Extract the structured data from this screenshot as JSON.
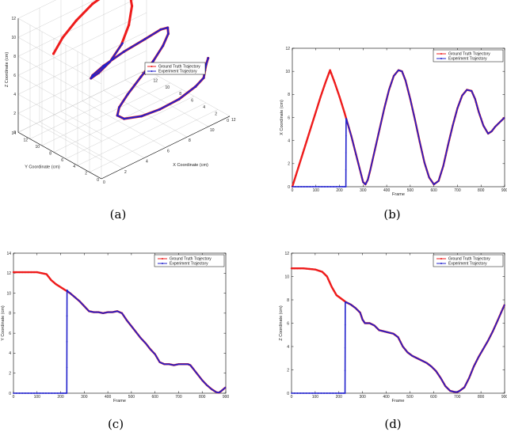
{
  "colors": {
    "ground_truth": "#ee1c1c",
    "experiment": "#2121cc",
    "axis": "#000000",
    "grid": "#bbbbbb"
  },
  "chart_data": [
    {
      "id": "a",
      "type": "line3d",
      "caption": "(a)",
      "xlabel": "X Coordinate (cm)",
      "ylabel": "Y Coordinate (cm)",
      "zlabel": "Z Coordinate (cm)",
      "xlim": [
        0,
        12
      ],
      "ylim": [
        0,
        14
      ],
      "zlim": [
        0,
        12
      ],
      "xticks": [
        "0",
        "2",
        "4",
        "6",
        "8",
        "10",
        "12"
      ],
      "yticks": [
        "0",
        "2",
        "4",
        "6",
        "8",
        "10",
        "12",
        "14"
      ],
      "zticks": [
        "0",
        "2",
        "4",
        "6",
        "8",
        "10",
        "12"
      ],
      "grid": true,
      "legend": {
        "position": "top-right",
        "entries": [
          "Ground Truth Trajectory",
          "Experiment Trajectory"
        ]
      },
      "series": [
        {
          "name": "Ground Truth Trajectory",
          "points": [
            [
              0.3,
              8.6,
              10
            ],
            [
              1.6,
              9.4,
              10.7
            ],
            [
              3.2,
              10,
              11.4
            ],
            [
              5,
              10.5,
              12
            ],
            [
              6.6,
              10.6,
              12.3
            ],
            [
              7.8,
              10.5,
              12.2
            ],
            [
              8.3,
              10.2,
              11.6
            ],
            [
              8.3,
              9.8,
              10.2
            ],
            [
              7.9,
              9.6,
              8.5
            ],
            [
              7.2,
              9.6,
              6.8
            ],
            [
              6.3,
              9.9,
              5.4
            ],
            [
              5.4,
              10.2,
              4.6
            ],
            [
              4.8,
              10.4,
              4.3
            ],
            [
              4.9,
              10.3,
              4.6
            ],
            [
              5.7,
              9.9,
              5.3
            ],
            [
              7.2,
              9.2,
              6.2
            ],
            [
              8.8,
              8.5,
              6.9
            ],
            [
              10.1,
              8.2,
              7.3
            ],
            [
              10.7,
              8.1,
              7.2
            ],
            [
              10.7,
              8,
              6.6
            ],
            [
              10.2,
              8,
              5.6
            ],
            [
              9.3,
              8,
              4.5
            ],
            [
              8.2,
              8.1,
              3.4
            ],
            [
              6.9,
              8,
              2.3
            ],
            [
              6,
              7.8,
              1.5
            ],
            [
              5.6,
              7.4,
              1
            ],
            [
              5.9,
              6.8,
              0.7
            ],
            [
              6.9,
              5.7,
              0.8
            ],
            [
              8,
              4.6,
              1.3
            ],
            [
              9.2,
              3.5,
              2.1
            ],
            [
              10.3,
              2.7,
              3.1
            ],
            [
              10.9,
              2.4,
              3.8
            ],
            [
              11.3,
              2.9,
              4.2
            ],
            [
              11.8,
              3.6,
              4.3
            ],
            [
              12.2,
              4,
              4.6
            ]
          ]
        },
        {
          "name": "Experiment Trajectory",
          "points": [
            [
              7.3,
              9.6,
              6.9
            ],
            [
              6.3,
              9.9,
              5.4
            ],
            [
              5.4,
              10.2,
              4.6
            ],
            [
              4.8,
              10.4,
              4.3
            ],
            [
              4.9,
              10.3,
              4.6
            ],
            [
              5.7,
              9.9,
              5.3
            ],
            [
              7.2,
              9.2,
              6.2
            ],
            [
              8.8,
              8.5,
              6.9
            ],
            [
              10.1,
              8.2,
              7.3
            ],
            [
              10.7,
              8.1,
              7.2
            ],
            [
              10.7,
              8,
              6.6
            ],
            [
              10.2,
              8,
              5.6
            ],
            [
              9.3,
              8,
              4.5
            ],
            [
              8.2,
              8.1,
              3.4
            ],
            [
              6.9,
              8,
              2.3
            ],
            [
              6,
              7.8,
              1.5
            ],
            [
              5.6,
              7.4,
              1
            ],
            [
              5.9,
              6.8,
              0.7
            ],
            [
              6.9,
              5.7,
              0.8
            ],
            [
              8,
              4.6,
              1.3
            ],
            [
              9.2,
              3.5,
              2.1
            ],
            [
              10.3,
              2.7,
              3.1
            ],
            [
              10.9,
              2.4,
              3.8
            ],
            [
              11.3,
              2.9,
              4.2
            ],
            [
              11.8,
              3.6,
              4.3
            ],
            [
              12.2,
              4,
              4.6
            ]
          ]
        }
      ]
    },
    {
      "id": "b",
      "type": "line",
      "caption": "(b)",
      "xlabel": "Frame",
      "ylabel": "X Coordinate (cm)",
      "xlim": [
        0,
        900
      ],
      "ylim": [
        0,
        12
      ],
      "xticks": [
        "0",
        "100",
        "200",
        "300",
        "400",
        "500",
        "600",
        "700",
        "800",
        "900"
      ],
      "yticks": [
        "0",
        "2",
        "4",
        "6",
        "8",
        "10",
        "12"
      ],
      "legend": {
        "position": "top-right",
        "entries": [
          "Ground Truth Trajectory",
          "Experiment Trajectory"
        ]
      },
      "series": [
        {
          "name": "Ground Truth Trajectory",
          "x": [
            0,
            20,
            40,
            60,
            80,
            100,
            120,
            140,
            160,
            180,
            200,
            220,
            230,
            250,
            270,
            290,
            300,
            310,
            320,
            330,
            350,
            370,
            390,
            410,
            430,
            450,
            465,
            480,
            500,
            520,
            540,
            560,
            580,
            600,
            620,
            640,
            660,
            680,
            700,
            720,
            740,
            760,
            775,
            790,
            810,
            830,
            845,
            860,
            880,
            900
          ],
          "y": [
            0,
            1.3,
            2.6,
            3.9,
            5.2,
            6.5,
            7.8,
            9,
            10.1,
            9,
            7.8,
            6.5,
            5.8,
            4.4,
            2.8,
            1.2,
            0.4,
            0.2,
            0.6,
            1.4,
            3.2,
            5,
            6.8,
            8.4,
            9.6,
            10.1,
            10,
            9.2,
            7.6,
            5.8,
            3.9,
            2.1,
            0.8,
            0.2,
            0.5,
            1.8,
            3.6,
            5.3,
            6.8,
            7.9,
            8.4,
            8.3,
            7.6,
            6.5,
            5.3,
            4.6,
            4.8,
            5.2,
            5.6,
            6
          ]
        },
        {
          "name": "Experiment Trajectory",
          "x": [
            0,
            50,
            100,
            150,
            200,
            227,
            228,
            230,
            250,
            270,
            290,
            300,
            310,
            320,
            330,
            350,
            370,
            390,
            410,
            430,
            450,
            465,
            480,
            500,
            520,
            540,
            560,
            580,
            600,
            620,
            640,
            660,
            680,
            700,
            720,
            740,
            760,
            775,
            790,
            810,
            830,
            845,
            860,
            880,
            900
          ],
          "y": [
            0,
            0,
            0,
            0,
            0,
            0,
            5.9,
            5.8,
            4.4,
            2.8,
            1.2,
            0.4,
            0.2,
            0.6,
            1.4,
            3.2,
            5,
            6.8,
            8.4,
            9.6,
            10.1,
            10,
            9.2,
            7.6,
            5.8,
            3.9,
            2.1,
            0.8,
            0.2,
            0.5,
            1.8,
            3.6,
            5.3,
            6.8,
            7.9,
            8.4,
            8.3,
            7.6,
            6.5,
            5.3,
            4.6,
            4.8,
            5.2,
            5.6,
            6
          ]
        }
      ]
    },
    {
      "id": "c",
      "type": "line",
      "caption": "(c)",
      "xlabel": "Frame",
      "ylabel": "Y Coordinate (cm)",
      "xlim": [
        0,
        900
      ],
      "ylim": [
        0,
        14
      ],
      "xticks": [
        "0",
        "100",
        "200",
        "300",
        "400",
        "500",
        "600",
        "700",
        "800",
        "900"
      ],
      "yticks": [
        "0",
        "2",
        "4",
        "6",
        "8",
        "10",
        "12",
        "14"
      ],
      "legend": {
        "position": "top-right",
        "entries": [
          "Ground Truth Trajectory",
          "Experiment Trajectory"
        ]
      },
      "series": [
        {
          "name": "Ground Truth Trajectory",
          "x": [
            0,
            50,
            100,
            140,
            160,
            180,
            200,
            220,
            240,
            260,
            280,
            300,
            320,
            340,
            360,
            380,
            400,
            420,
            440,
            460,
            480,
            500,
            520,
            540,
            560,
            580,
            600,
            620,
            640,
            660,
            680,
            700,
            720,
            740,
            750,
            760,
            780,
            800,
            820,
            840,
            860,
            870,
            880,
            900
          ],
          "y": [
            12.1,
            12.1,
            12.1,
            11.9,
            11.3,
            10.9,
            10.6,
            10.3,
            10,
            9.6,
            9.2,
            8.7,
            8.2,
            8.1,
            8.1,
            8,
            8.1,
            8.1,
            8.2,
            8,
            7.3,
            6.7,
            6.1,
            5.5,
            5,
            4.4,
            3.9,
            3.1,
            2.9,
            2.9,
            2.8,
            2.9,
            2.9,
            2.9,
            2.8,
            2.5,
            1.9,
            1.3,
            0.8,
            0.4,
            0.1,
            0.05,
            0.2,
            0.6
          ]
        },
        {
          "name": "Experiment Trajectory",
          "x": [
            0,
            50,
            100,
            150,
            200,
            226,
            227,
            230,
            240,
            260,
            280,
            300,
            320,
            340,
            360,
            380,
            400,
            420,
            440,
            460,
            480,
            500,
            520,
            540,
            560,
            580,
            600,
            620,
            640,
            660,
            680,
            700,
            720,
            740,
            750,
            760,
            780,
            800,
            820,
            840,
            860,
            870,
            880,
            900
          ],
          "y": [
            0,
            0,
            0,
            0,
            0,
            0,
            10.3,
            10.2,
            10,
            9.6,
            9.2,
            8.7,
            8.2,
            8.1,
            8.1,
            8,
            8.1,
            8.1,
            8.2,
            8,
            7.3,
            6.7,
            6.1,
            5.5,
            5,
            4.4,
            3.9,
            3.1,
            2.9,
            2.9,
            2.8,
            2.9,
            2.9,
            2.9,
            2.8,
            2.5,
            1.9,
            1.3,
            0.8,
            0.4,
            0.1,
            0.05,
            0.2,
            0.6
          ]
        }
      ]
    },
    {
      "id": "d",
      "type": "line",
      "caption": "(d)",
      "xlabel": "Frame",
      "ylabel": "Z Coordinate (cm)",
      "xlim": [
        0,
        900
      ],
      "ylim": [
        0,
        12
      ],
      "xticks": [
        "0",
        "100",
        "200",
        "300",
        "400",
        "500",
        "600",
        "700",
        "800",
        "900"
      ],
      "yticks": [
        "0",
        "2",
        "4",
        "6",
        "8",
        "10",
        "12"
      ],
      "legend": {
        "position": "top-right",
        "entries": [
          "Ground Truth Trajectory",
          "Experiment Trajectory"
        ]
      },
      "series": [
        {
          "name": "Ground Truth Trajectory",
          "x": [
            0,
            50,
            100,
            130,
            150,
            170,
            190,
            210,
            230,
            250,
            270,
            290,
            300,
            310,
            330,
            350,
            370,
            390,
            410,
            430,
            450,
            470,
            490,
            510,
            530,
            550,
            570,
            590,
            610,
            630,
            650,
            670,
            690,
            700,
            710,
            730,
            750,
            770,
            790,
            810,
            830,
            850,
            870,
            900
          ],
          "y": [
            10.7,
            10.7,
            10.6,
            10.4,
            10,
            9.1,
            8.4,
            8.1,
            7.8,
            7.6,
            7.3,
            6.9,
            6.3,
            6,
            6,
            5.8,
            5.4,
            5.3,
            5.2,
            5.1,
            4.8,
            4,
            3.5,
            3.2,
            3,
            2.8,
            2.6,
            2.3,
            1.9,
            1.3,
            0.6,
            0.2,
            0.1,
            0.1,
            0.2,
            0.5,
            1.3,
            2.3,
            3.1,
            3.8,
            4.5,
            5.3,
            6.2,
            7.6
          ]
        },
        {
          "name": "Experiment Trajectory",
          "x": [
            0,
            50,
            100,
            150,
            200,
            226,
            227,
            230,
            250,
            270,
            290,
            300,
            310,
            330,
            350,
            370,
            390,
            410,
            430,
            450,
            470,
            490,
            510,
            530,
            550,
            570,
            590,
            610,
            630,
            650,
            670,
            690,
            700,
            710,
            730,
            750,
            770,
            790,
            810,
            830,
            850,
            870,
            900
          ],
          "y": [
            0,
            0,
            0,
            0,
            0,
            0,
            7.8,
            7.8,
            7.6,
            7.3,
            6.9,
            6.3,
            6,
            6,
            5.8,
            5.4,
            5.3,
            5.2,
            5.1,
            4.8,
            4,
            3.5,
            3.2,
            3,
            2.8,
            2.6,
            2.3,
            1.9,
            1.3,
            0.6,
            0.2,
            0.1,
            0.1,
            0.2,
            0.5,
            1.3,
            2.3,
            3.1,
            3.8,
            4.5,
            5.3,
            6.2,
            7.6
          ]
        }
      ]
    }
  ]
}
